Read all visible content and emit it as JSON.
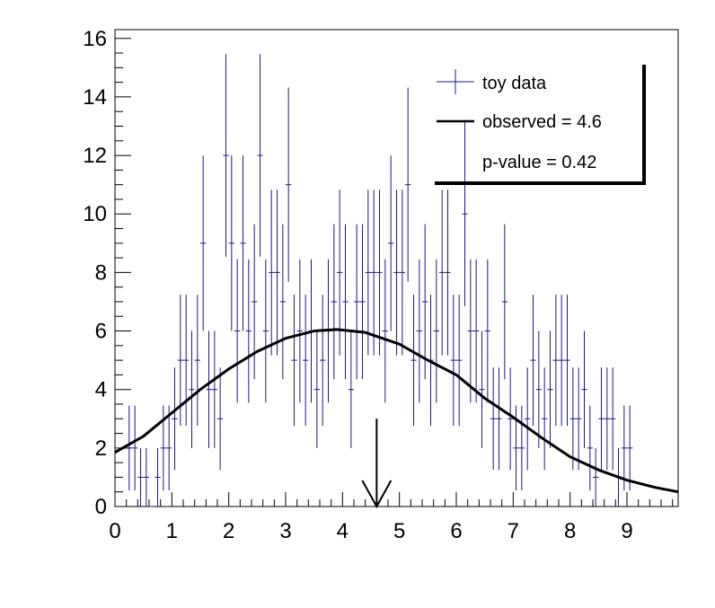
{
  "chart_data": {
    "type": "scatter",
    "xlim": [
      0,
      9.9
    ],
    "ylim": [
      0,
      16.3
    ],
    "x_ticks": [
      "0",
      "1",
      "2",
      "3",
      "4",
      "5",
      "6",
      "7",
      "8",
      "9"
    ],
    "y_ticks": [
      "0",
      "2",
      "4",
      "6",
      "8",
      "10",
      "12",
      "14",
      "16"
    ],
    "grid": false,
    "legend_position": "top-right",
    "legend": {
      "data_label": "toy data",
      "observed_label": "observed = 4.6",
      "pvalue_label": "p-value = 0.42"
    },
    "observed_value": 4.6,
    "arrow_top": 3.0,
    "colors": {
      "data": "#1a1a80",
      "curve": "#000000",
      "axis": "#000000"
    },
    "series": [
      {
        "name": "toy data",
        "points": [
          [
            0.25,
            2.0,
            1.45
          ],
          [
            0.35,
            2.0,
            1.45
          ],
          [
            0.45,
            1.0,
            1.0
          ],
          [
            0.55,
            1.0,
            1.0
          ],
          [
            0.65,
            0.0,
            0.0
          ],
          [
            0.75,
            1.0,
            1.0
          ],
          [
            0.85,
            2.0,
            1.45
          ],
          [
            0.95,
            2.0,
            1.45
          ],
          [
            1.05,
            3.0,
            1.75
          ],
          [
            1.15,
            5.0,
            2.24
          ],
          [
            1.25,
            5.0,
            2.24
          ],
          [
            1.35,
            4.0,
            2.0
          ],
          [
            1.45,
            5.0,
            2.24
          ],
          [
            1.55,
            9.0,
            3.0
          ],
          [
            1.65,
            4.0,
            2.0
          ],
          [
            1.75,
            4.0,
            2.0
          ],
          [
            1.85,
            3.0,
            1.75
          ],
          [
            1.95,
            12.0,
            3.46
          ],
          [
            2.05,
            9.0,
            3.0
          ],
          [
            2.15,
            6.0,
            2.45
          ],
          [
            2.25,
            9.0,
            3.0
          ],
          [
            2.35,
            6.0,
            2.45
          ],
          [
            2.45,
            7.0,
            2.65
          ],
          [
            2.55,
            12.0,
            3.46
          ],
          [
            2.65,
            6.0,
            2.45
          ],
          [
            2.75,
            8.0,
            2.83
          ],
          [
            2.85,
            8.0,
            2.83
          ],
          [
            2.95,
            7.0,
            2.65
          ],
          [
            3.05,
            11.0,
            3.32
          ],
          [
            3.15,
            5.0,
            2.24
          ],
          [
            3.25,
            6.0,
            2.45
          ],
          [
            3.35,
            5.0,
            2.24
          ],
          [
            3.45,
            6.0,
            2.45
          ],
          [
            3.55,
            4.0,
            2.0
          ],
          [
            3.65,
            5.0,
            2.24
          ],
          [
            3.75,
            6.0,
            2.45
          ],
          [
            3.85,
            7.0,
            2.65
          ],
          [
            3.95,
            8.0,
            2.83
          ],
          [
            4.05,
            7.0,
            2.65
          ],
          [
            4.15,
            4.0,
            2.0
          ],
          [
            4.25,
            7.0,
            2.65
          ],
          [
            4.35,
            7.0,
            2.65
          ],
          [
            4.45,
            8.0,
            2.83
          ],
          [
            4.55,
            8.0,
            2.83
          ],
          [
            4.65,
            8.0,
            2.83
          ],
          [
            4.75,
            6.0,
            2.45
          ],
          [
            4.85,
            9.0,
            3.0
          ],
          [
            4.95,
            8.0,
            2.83
          ],
          [
            5.05,
            8.0,
            2.83
          ],
          [
            5.15,
            11.0,
            3.32
          ],
          [
            5.25,
            5.0,
            2.24
          ],
          [
            5.35,
            6.0,
            2.45
          ],
          [
            5.45,
            7.0,
            2.65
          ],
          [
            5.55,
            5.0,
            2.24
          ],
          [
            5.65,
            6.0,
            2.45
          ],
          [
            5.75,
            8.0,
            2.83
          ],
          [
            5.85,
            8.0,
            2.83
          ],
          [
            5.95,
            5.0,
            2.24
          ],
          [
            6.05,
            5.0,
            2.24
          ],
          [
            6.15,
            10.0,
            3.16
          ],
          [
            6.25,
            6.0,
            2.45
          ],
          [
            6.35,
            6.0,
            2.45
          ],
          [
            6.45,
            4.0,
            2.0
          ],
          [
            6.55,
            6.0,
            2.45
          ],
          [
            6.65,
            3.0,
            1.75
          ],
          [
            6.75,
            3.0,
            1.75
          ],
          [
            6.85,
            7.0,
            2.65
          ],
          [
            6.95,
            3.0,
            1.75
          ],
          [
            7.05,
            2.0,
            1.45
          ],
          [
            7.15,
            2.0,
            1.45
          ],
          [
            7.25,
            3.0,
            1.75
          ],
          [
            7.35,
            5.0,
            2.24
          ],
          [
            7.45,
            4.0,
            2.0
          ],
          [
            7.55,
            3.0,
            1.75
          ],
          [
            7.65,
            4.0,
            2.0
          ],
          [
            7.75,
            5.0,
            2.24
          ],
          [
            7.85,
            5.0,
            2.24
          ],
          [
            7.95,
            5.0,
            2.24
          ],
          [
            8.05,
            3.0,
            1.75
          ],
          [
            8.15,
            3.0,
            1.75
          ],
          [
            8.25,
            4.0,
            2.0
          ],
          [
            8.35,
            2.0,
            1.45
          ],
          [
            8.45,
            1.0,
            1.0
          ],
          [
            8.55,
            3.0,
            1.75
          ],
          [
            8.65,
            3.0,
            1.75
          ],
          [
            8.75,
            3.0,
            1.75
          ],
          [
            8.85,
            1.0,
            1.0
          ],
          [
            8.95,
            2.0,
            1.45
          ],
          [
            9.05,
            2.0,
            1.45
          ]
        ]
      },
      {
        "name": "observed = 4.6",
        "type": "line",
        "x": [
          0,
          0.5,
          1.0,
          1.5,
          2.0,
          2.5,
          3.0,
          3.5,
          3.9,
          4.4,
          5.0,
          5.5,
          6.0,
          6.5,
          7.0,
          7.5,
          8.0,
          8.5,
          9.0,
          9.5,
          9.9
        ],
        "y": [
          1.85,
          2.4,
          3.2,
          4.0,
          4.7,
          5.3,
          5.75,
          6.0,
          6.05,
          5.95,
          5.55,
          5.0,
          4.5,
          3.7,
          3.05,
          2.35,
          1.7,
          1.25,
          0.9,
          0.65,
          0.5
        ]
      }
    ]
  }
}
